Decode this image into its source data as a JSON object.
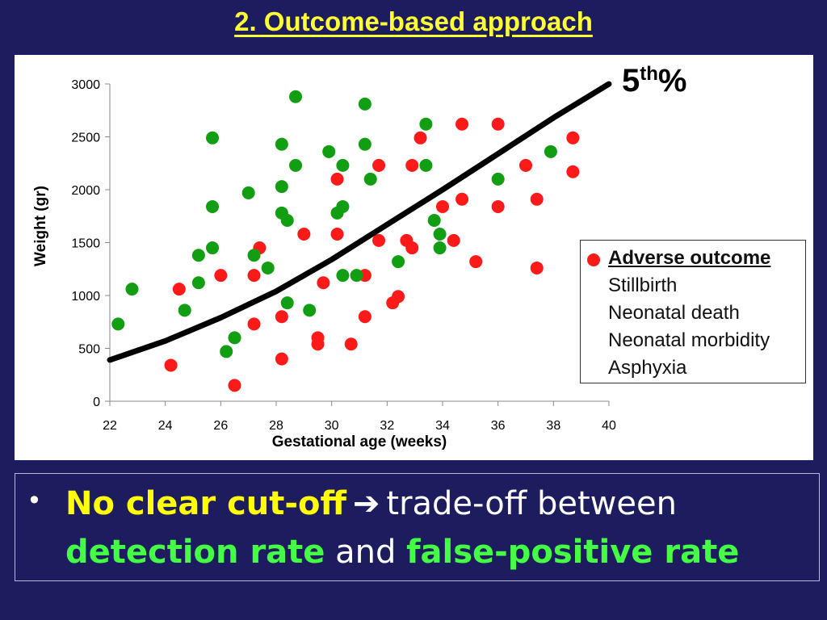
{
  "slide": {
    "title": "2. Outcome-based approach",
    "percentile_label_main": "5",
    "percentile_label_sup": "th",
    "percentile_label_tail": "%"
  },
  "legend": {
    "heading": "Adverse outcome",
    "items": [
      "Stillbirth",
      "Neonatal death",
      "Neonatal morbidity",
      "Asphyxia"
    ]
  },
  "bullet": {
    "mark": "•",
    "part1": "No clear cut-off",
    "arrow": "➔",
    "part2": "trade-off between",
    "part3": "detection rate",
    "part4": "and",
    "part5": "false-positive rate"
  },
  "colors": {
    "background": "#1c1c5e",
    "title": "#ffff33",
    "adverse": "#ff1a1a",
    "normal": "#129e12",
    "curve": "#000000",
    "highlight_yellow": "#ffff00",
    "highlight_green": "#44ff44"
  },
  "chart_data": {
    "type": "scatter",
    "xlabel": "Gestational age (weeks)",
    "ylabel": "Weight (gr)",
    "xlim": [
      22,
      40
    ],
    "ylim": [
      0,
      3000
    ],
    "x_ticks": [
      22,
      24,
      26,
      28,
      30,
      32,
      34,
      36,
      38,
      40
    ],
    "y_ticks": [
      0,
      500,
      1000,
      1500,
      2000,
      2500,
      3000
    ],
    "grid": false,
    "series": [
      {
        "name": "Adverse outcome",
        "color": "#ff1a1a",
        "points": [
          [
            24.2,
            340
          ],
          [
            24.5,
            1060
          ],
          [
            26.0,
            1190
          ],
          [
            26.5,
            150
          ],
          [
            27.2,
            730
          ],
          [
            27.2,
            1190
          ],
          [
            27.4,
            1450
          ],
          [
            28.2,
            400
          ],
          [
            28.2,
            800
          ],
          [
            29.0,
            1580
          ],
          [
            29.5,
            540
          ],
          [
            29.5,
            600
          ],
          [
            29.7,
            1120
          ],
          [
            30.2,
            1580
          ],
          [
            30.2,
            2100
          ],
          [
            30.7,
            540
          ],
          [
            31.2,
            1190
          ],
          [
            31.2,
            800
          ],
          [
            31.7,
            1520
          ],
          [
            31.7,
            2230
          ],
          [
            32.2,
            930
          ],
          [
            32.4,
            990
          ],
          [
            32.7,
            1520
          ],
          [
            32.9,
            1450
          ],
          [
            32.9,
            2230
          ],
          [
            33.2,
            2490
          ],
          [
            34.0,
            1840
          ],
          [
            34.4,
            1520
          ],
          [
            34.7,
            2620
          ],
          [
            34.7,
            1910
          ],
          [
            35.2,
            1320
          ],
          [
            36.0,
            2620
          ],
          [
            36.0,
            1840
          ],
          [
            37.0,
            2230
          ],
          [
            37.4,
            1910
          ],
          [
            37.4,
            1260
          ],
          [
            38.7,
            2490
          ],
          [
            38.7,
            2170
          ]
        ]
      },
      {
        "color": "#129e12",
        "points": [
          [
            22.3,
            730
          ],
          [
            22.8,
            1060
          ],
          [
            24.7,
            860
          ],
          [
            25.2,
            1120
          ],
          [
            25.2,
            1380
          ],
          [
            25.7,
            1450
          ],
          [
            25.7,
            1840
          ],
          [
            25.7,
            2490
          ],
          [
            26.2,
            470
          ],
          [
            26.5,
            600
          ],
          [
            27.0,
            1970
          ],
          [
            27.2,
            1380
          ],
          [
            27.7,
            1260
          ],
          [
            28.2,
            2030
          ],
          [
            28.2,
            2430
          ],
          [
            28.2,
            1780
          ],
          [
            28.4,
            930
          ],
          [
            28.4,
            1710
          ],
          [
            28.7,
            2230
          ],
          [
            28.7,
            2880
          ],
          [
            29.2,
            860
          ],
          [
            29.9,
            2360
          ],
          [
            30.2,
            1780
          ],
          [
            30.4,
            2230
          ],
          [
            30.4,
            1840
          ],
          [
            30.4,
            1190
          ],
          [
            30.9,
            1190
          ],
          [
            31.2,
            2430
          ],
          [
            31.2,
            2810
          ],
          [
            31.4,
            2100
          ],
          [
            32.4,
            1320
          ],
          [
            33.4,
            2620
          ],
          [
            33.4,
            2230
          ],
          [
            33.7,
            1710
          ],
          [
            33.9,
            1580
          ],
          [
            33.9,
            1450
          ],
          [
            36.0,
            2100
          ],
          [
            37.9,
            2360
          ]
        ]
      },
      {
        "name": "5th%",
        "type": "line",
        "color": "#000000",
        "points": [
          [
            22,
            390
          ],
          [
            24,
            570
          ],
          [
            26,
            790
          ],
          [
            28,
            1040
          ],
          [
            30,
            1340
          ],
          [
            32,
            1670
          ],
          [
            34,
            2000
          ],
          [
            36,
            2340
          ],
          [
            38,
            2680
          ],
          [
            40,
            3000
          ]
        ]
      }
    ]
  }
}
